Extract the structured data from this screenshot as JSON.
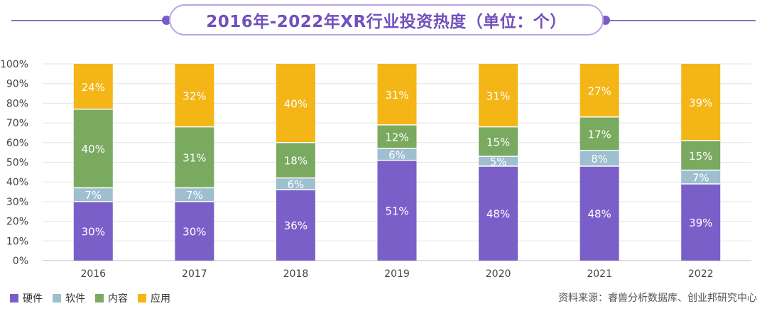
{
  "title": "2016年-2022年XR行业投资热度（单位：个）",
  "source": "资料来源：睿兽分析数据库、创业邦研究中心",
  "colors": {
    "硬件": "#7b5fc9",
    "软件": "#9dbfcf",
    "内容": "#7aaa60",
    "应用": "#f4b516"
  },
  "legend": [
    {
      "label": "硬件",
      "color": "#7b5fc9"
    },
    {
      "label": "软件",
      "color": "#9dbfcf"
    },
    {
      "label": "内容",
      "color": "#7aaa60"
    },
    {
      "label": "应用",
      "color": "#f4b516"
    }
  ],
  "chart_data": {
    "type": "bar",
    "stacked": true,
    "percent": true,
    "categories": [
      "2016",
      "2017",
      "2018",
      "2019",
      "2020",
      "2021",
      "2022"
    ],
    "series": [
      {
        "name": "硬件",
        "values": [
          30,
          30,
          36,
          51,
          48,
          48,
          39
        ]
      },
      {
        "name": "软件",
        "values": [
          7,
          7,
          6,
          6,
          5,
          8,
          7
        ]
      },
      {
        "name": "内容",
        "values": [
          40,
          31,
          18,
          12,
          15,
          17,
          15
        ]
      },
      {
        "name": "应用",
        "values": [
          24,
          32,
          40,
          31,
          31,
          27,
          39
        ]
      }
    ],
    "y_ticks": [
      "0%",
      "10%",
      "20%",
      "30%",
      "40%",
      "50%",
      "60%",
      "70%",
      "80%",
      "90%",
      "100%"
    ],
    "ylim": [
      0,
      100
    ],
    "grid": true,
    "legend_position": "bottom-left"
  }
}
